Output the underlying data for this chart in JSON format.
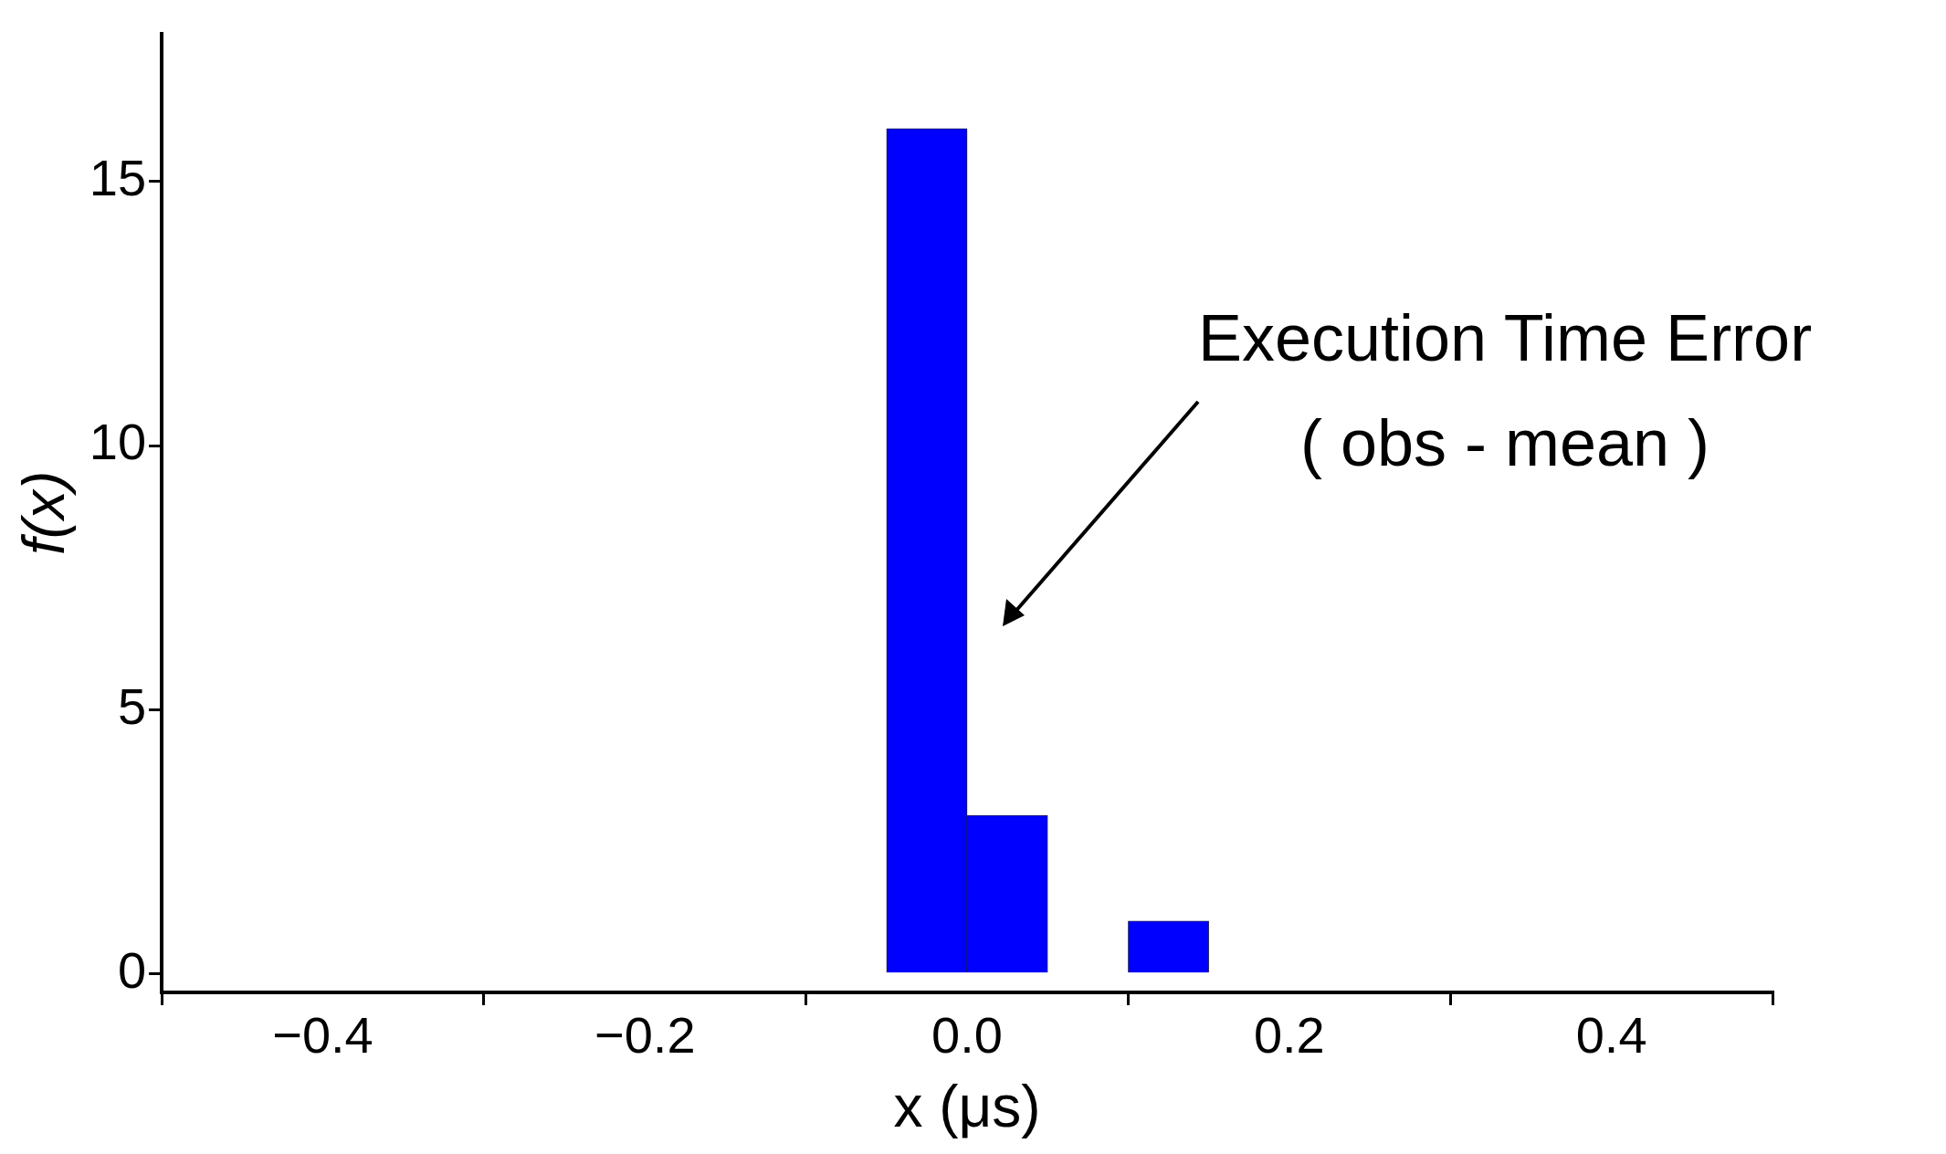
{
  "chart_data": {
    "type": "histogram",
    "xlabel": "x (μs)",
    "ylabel": "f(x)",
    "bins": [
      -0.05,
      0,
      0.05,
      0.1,
      0.15,
      0.2,
      0.25,
      0.3,
      0.35,
      0.4,
      0.45,
      0.5
    ],
    "values": [
      16,
      3,
      0,
      1,
      0,
      0,
      null,
      null,
      null,
      null,
      0
    ],
    "color": "#0000ff",
    "xlim": [
      -0.5,
      0.5
    ],
    "xticks": [
      {
        "value": -0.4,
        "label": "−0.4"
      },
      {
        "value": -0.2,
        "label": "−0.2"
      },
      {
        "value": 0,
        "label": "0.0"
      },
      {
        "value": 0.2,
        "label": "0.2"
      },
      {
        "value": 0.4,
        "label": "0.4"
      }
    ],
    "ylim": [
      -0.35,
      17.8
    ],
    "yticks": [
      0,
      5,
      10,
      15
    ],
    "annotations": [
      "Execution Time Error\n( obs - mean )"
    ],
    "grid": false,
    "legend": false
  }
}
